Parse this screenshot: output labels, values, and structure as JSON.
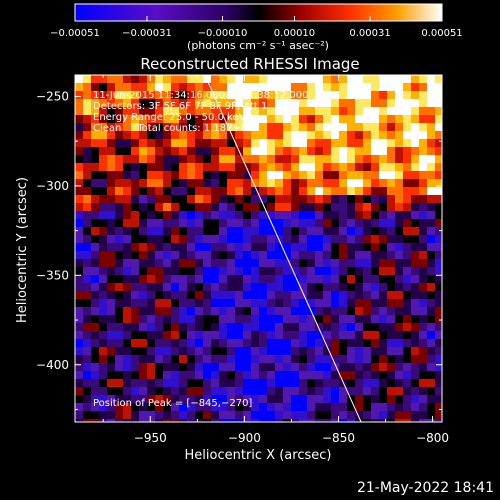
{
  "chart_data": {
    "type": "heatmap",
    "title": "Reconstructed RHESSI Image",
    "xlabel": "Heliocentric X (arcsec)",
    "ylabel": "Heliocentric Y (arcsec)",
    "xlim": [
      -990,
      -795
    ],
    "ylim": [
      -432,
      -238
    ],
    "x_ticks": [
      -950,
      -900,
      -850,
      -800
    ],
    "x_tick_labels": [
      "−950",
      "−900",
      "−850",
      "−800"
    ],
    "y_ticks": [
      -400,
      -350,
      -300,
      -250
    ],
    "y_tick_labels": [
      "−400",
      "−350",
      "−300",
      "−250"
    ],
    "colorbar": {
      "ticks": [
        -0.00051,
        -0.00031,
        -0.0001,
        0.0001,
        0.00031,
        0.00051
      ],
      "tick_labels": [
        "−0.00051",
        "−0.00031",
        "−0.00010",
        "0.00010",
        "0.00031",
        "0.00051"
      ],
      "unit_label": "(photons cm⁻² s⁻¹ asec⁻²)",
      "range": [
        -0.00051,
        0.00051
      ]
    },
    "annotations": [
      "11-Jun-2015 11:34:16.000 to 11:38:12.000",
      "Detectors: 3F 5F 6F 7F 8F 9F, Att 1",
      "Energy Range: 25.0 - 50.0 keV",
      "Clean     Total counts: 1.18E+04"
    ],
    "peak_label": "Position of Peak = [−845,−270]",
    "peak": [
      -845,
      -270
    ],
    "limb_line": [
      [
        -921,
        -238
      ],
      [
        -838,
        -432
      ]
    ]
  },
  "timestamp": "21-May-2022 18:41"
}
